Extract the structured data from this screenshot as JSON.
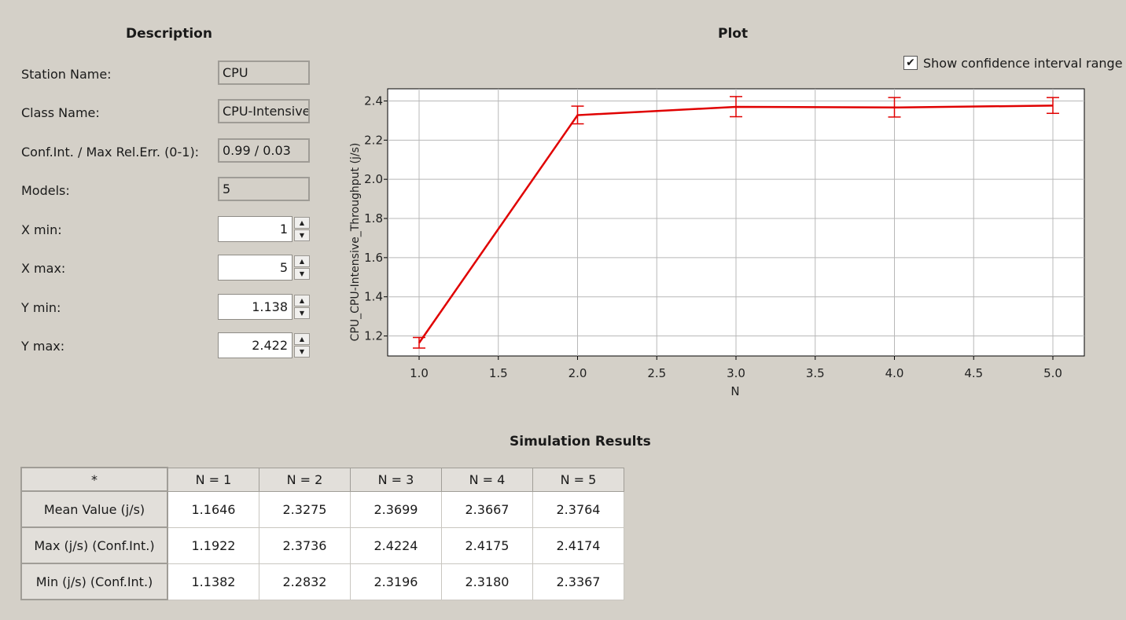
{
  "description": {
    "heading": "Description",
    "station_name_label": "Station Name:",
    "station_name_value": "CPU",
    "class_name_label": "Class Name:",
    "class_name_value": "CPU-Intensive",
    "conf_label": "Conf.Int. / Max Rel.Err. (0-1):",
    "conf_value": "0.99 / 0.03",
    "models_label": "Models:",
    "models_value": "5",
    "xmin_label": "X min:",
    "xmin_value": "1",
    "xmax_label": "X max:",
    "xmax_value": "5",
    "ymin_label": "Y min:",
    "ymin_value": "1.138",
    "ymax_label": "Y max:",
    "ymax_value": "2.422"
  },
  "plot": {
    "heading": "Plot",
    "show_ci_label": "Show confidence interval range",
    "show_ci_checked": true
  },
  "chart_data": {
    "type": "line",
    "xlabel": "N",
    "ylabel": "CPU_CPU-Intensive_Throughput (j/s)",
    "xlim": [
      1.0,
      5.0
    ],
    "ylim": [
      1.138,
      2.422
    ],
    "xticks": [
      "1.0",
      "1.5",
      "2.0",
      "2.5",
      "3.0",
      "3.5",
      "4.0",
      "4.5",
      "5.0"
    ],
    "yticks": [
      "1.2",
      "1.4",
      "1.6",
      "1.8",
      "2.0",
      "2.2",
      "2.4"
    ],
    "grid": true,
    "line_color": "#e00000",
    "x": [
      1,
      2,
      3,
      4,
      5
    ],
    "series": [
      {
        "values": [
          1.1646,
          2.3275,
          2.3699,
          2.3667,
          2.3764
        ],
        "upper": [
          1.1922,
          2.3736,
          2.4224,
          2.4175,
          2.4174
        ],
        "lower": [
          1.1382,
          2.2832,
          2.3196,
          2.318,
          2.3367
        ]
      }
    ]
  },
  "results": {
    "heading": "Simulation Results",
    "corner": "*",
    "columns": [
      "N = 1",
      "N = 2",
      "N = 3",
      "N = 4",
      "N = 5"
    ],
    "rows": [
      {
        "label": "Mean Value (j/s)",
        "cells": [
          "1.1646",
          "2.3275",
          "2.3699",
          "2.3667",
          "2.3764"
        ]
      },
      {
        "label": "Max (j/s) (Conf.Int.)",
        "cells": [
          "1.1922",
          "2.3736",
          "2.4224",
          "2.4175",
          "2.4174"
        ]
      },
      {
        "label": "Min (j/s) (Conf.Int.)",
        "cells": [
          "1.1382",
          "2.2832",
          "2.3196",
          "2.3180",
          "2.3367"
        ]
      }
    ]
  }
}
